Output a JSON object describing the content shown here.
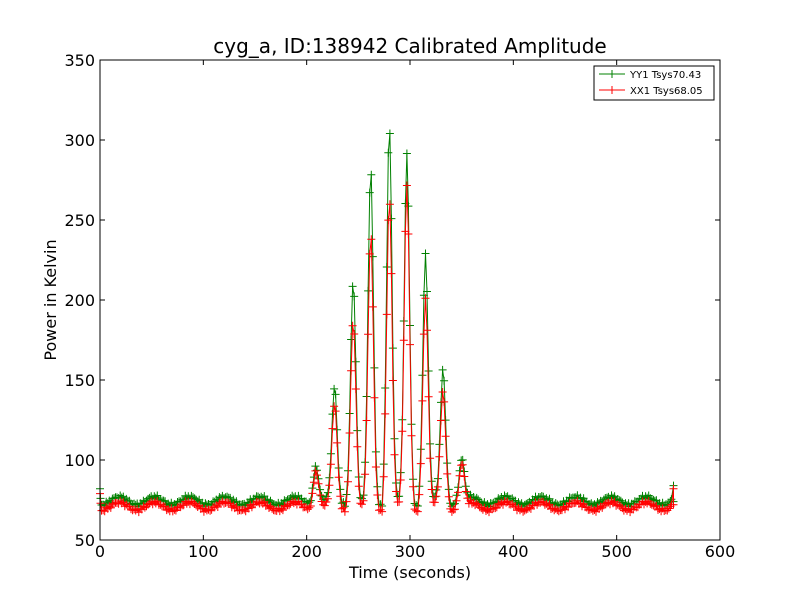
{
  "chart_data": {
    "type": "line",
    "title": "cyg_a, ID:138942 Calibrated Amplitude",
    "xlabel": "Time (seconds)",
    "ylabel": "Power in Kelvin",
    "xlim": [
      0,
      600
    ],
    "ylim": [
      50,
      350
    ],
    "xticks": [
      0,
      100,
      200,
      300,
      400,
      500,
      600
    ],
    "yticks": [
      50,
      100,
      150,
      200,
      250,
      300,
      350
    ],
    "grid": false,
    "legend_position": "top-right",
    "x_end": 555,
    "series": [
      {
        "name": "YY1 Tsys70.43",
        "color": "#008000",
        "baseline": 74.5,
        "ripple": 2.5,
        "ripple_period": 34,
        "peaks": [
          [
            209,
            98
          ],
          [
            227,
            144
          ],
          [
            245,
            213
          ],
          [
            262,
            280
          ],
          [
            280,
            310
          ],
          [
            297,
            291
          ],
          [
            315,
            229
          ],
          [
            332,
            156
          ],
          [
            350,
            101
          ]
        ],
        "end_value": 84,
        "start_value": 82
      },
      {
        "name": "XX1 Tsys68.05",
        "color": "#ff0000",
        "baseline": 71,
        "ripple": 2.5,
        "ripple_period": 34,
        "peaks": [
          [
            209,
            95
          ],
          [
            227,
            133
          ],
          [
            245,
            188
          ],
          [
            262,
            239
          ],
          [
            280,
            265
          ],
          [
            297,
            271
          ],
          [
            315,
            201
          ],
          [
            332,
            142
          ],
          [
            350,
            98
          ]
        ],
        "end_value": 82,
        "start_value": 79
      }
    ]
  }
}
